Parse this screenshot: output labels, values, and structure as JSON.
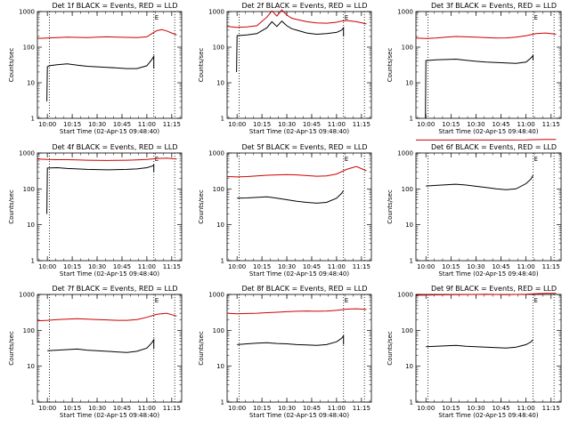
{
  "chart_data": [
    {
      "type": "line",
      "title": "Det 1f BLACK = Events, RED = LLD",
      "xlabel": "Start Time (02-Apr-15 09:48:40)",
      "ylabel": "Counts/sec",
      "yscale": "log",
      "ylim": [
        1,
        1000
      ],
      "xlim": [
        9.9,
        11.35
      ],
      "x_ticks": [
        "10:00",
        "10:15",
        "10:30",
        "10:45",
        "11:00",
        "11:15"
      ],
      "y_ticks": [
        "1",
        "10",
        "100",
        "1000"
      ],
      "grid": false,
      "legend": "none",
      "markers": [
        {
          "x": 10.02,
          "label": ""
        },
        {
          "x": 11.07,
          "label": "E"
        },
        {
          "x": 11.28,
          "label": ""
        }
      ],
      "series": [
        {
          "color": "#000000",
          "x": [
            9.995,
            10.0,
            10.02,
            10.1,
            10.2,
            10.3,
            10.4,
            10.5,
            10.6,
            10.7,
            10.8,
            10.9,
            11.0,
            11.05,
            11.07,
            11.07
          ],
          "y": [
            3,
            28,
            30,
            32,
            34,
            31,
            29,
            28,
            27,
            26,
            25,
            25,
            30,
            45,
            55,
            25
          ]
        },
        {
          "color": "#cc0000",
          "x": [
            9.9,
            10.0,
            10.1,
            10.2,
            10.3,
            10.4,
            10.5,
            10.6,
            10.7,
            10.8,
            10.9,
            11.0,
            11.05,
            11.1,
            11.15,
            11.2,
            11.25,
            11.3
          ],
          "y": [
            175,
            180,
            185,
            190,
            188,
            185,
            192,
            195,
            190,
            188,
            185,
            195,
            240,
            290,
            310,
            285,
            250,
            220
          ]
        }
      ]
    },
    {
      "type": "line",
      "title": "Det 2f BLACK = Events, RED = LLD",
      "xlabel": "Start Time (02-Apr-15 09:48:40)",
      "ylabel": "Counts/sec",
      "yscale": "log",
      "ylim": [
        1,
        1000
      ],
      "xlim": [
        9.9,
        11.35
      ],
      "x_ticks": [
        "10:00",
        "10:15",
        "10:30",
        "10:45",
        "11:00",
        "11:15"
      ],
      "y_ticks": [
        "1",
        "10",
        "100",
        "1000"
      ],
      "grid": false,
      "legend": "none",
      "markers": [
        {
          "x": 10.02,
          "label": ""
        },
        {
          "x": 11.07,
          "label": "E"
        },
        {
          "x": 11.28,
          "label": ""
        }
      ],
      "series": [
        {
          "color": "#000000",
          "x": [
            9.995,
            10.0,
            10.1,
            10.2,
            10.3,
            10.35,
            10.4,
            10.45,
            10.5,
            10.55,
            10.6,
            10.7,
            10.8,
            10.9,
            11.0,
            11.05,
            11.07,
            11.07
          ],
          "y": [
            20,
            210,
            220,
            240,
            350,
            520,
            380,
            540,
            400,
            330,
            300,
            250,
            230,
            240,
            260,
            300,
            350,
            200
          ]
        },
        {
          "color": "#cc0000",
          "x": [
            9.9,
            10.0,
            10.1,
            10.2,
            10.3,
            10.35,
            10.4,
            10.45,
            10.5,
            10.55,
            10.6,
            10.7,
            10.8,
            10.9,
            11.0,
            11.05,
            11.1,
            11.2,
            11.3
          ],
          "y": [
            380,
            360,
            370,
            400,
            700,
            1050,
            750,
            1100,
            800,
            650,
            600,
            520,
            480,
            470,
            500,
            540,
            560,
            520,
            450
          ]
        }
      ]
    },
    {
      "type": "line",
      "title": "Det 3f BLACK = Events, RED = LLD",
      "xlabel": "Start Time (02-Apr-15 09:48:40)",
      "ylabel": "Counts/sec",
      "yscale": "log",
      "ylim": [
        1,
        1000
      ],
      "xlim": [
        9.9,
        11.35
      ],
      "x_ticks": [
        "10:00",
        "10:15",
        "10:30",
        "10:45",
        "11:00",
        "11:15"
      ],
      "y_ticks": [
        "1",
        "10",
        "100",
        "1000"
      ],
      "grid": false,
      "legend": "none",
      "markers": [
        {
          "x": 10.02,
          "label": ""
        },
        {
          "x": 11.07,
          "label": "E"
        },
        {
          "x": 11.28,
          "label": ""
        }
      ],
      "series": [
        {
          "color": "#000000",
          "x": [
            9.995,
            10.0,
            10.1,
            10.2,
            10.3,
            10.4,
            10.5,
            10.6,
            10.7,
            10.8,
            10.9,
            11.0,
            11.05,
            11.07,
            11.07
          ],
          "y": [
            1,
            42,
            44,
            45,
            46,
            43,
            40,
            38,
            37,
            36,
            35,
            38,
            50,
            58,
            42
          ]
        },
        {
          "color": "#cc0000",
          "x": [
            9.9,
            10.0,
            10.1,
            10.2,
            10.3,
            10.4,
            10.5,
            10.6,
            10.7,
            10.8,
            10.9,
            11.0,
            11.1,
            11.2,
            11.3
          ],
          "y": [
            180,
            175,
            180,
            190,
            200,
            195,
            190,
            185,
            180,
            182,
            190,
            210,
            240,
            250,
            230
          ]
        }
      ]
    },
    {
      "type": "line",
      "title": "Det 4f BLACK = Events, RED = LLD",
      "xlabel": "Start Time (02-Apr-15 09:48:40)",
      "ylabel": "Counts/sec",
      "yscale": "log",
      "ylim": [
        1,
        1000
      ],
      "xlim": [
        9.9,
        11.35
      ],
      "x_ticks": [
        "10:00",
        "10:15",
        "10:30",
        "10:45",
        "11:00",
        "11:15"
      ],
      "y_ticks": [
        "1",
        "10",
        "100",
        "1000"
      ],
      "grid": false,
      "legend": "none",
      "markers": [
        {
          "x": 10.02,
          "label": ""
        },
        {
          "x": 11.07,
          "label": "E"
        },
        {
          "x": 11.28,
          "label": ""
        }
      ],
      "series": [
        {
          "color": "#000000",
          "x": [
            9.995,
            10.0,
            10.1,
            10.2,
            10.3,
            10.4,
            10.5,
            10.6,
            10.7,
            10.8,
            10.9,
            11.0,
            11.05,
            11.07,
            11.07
          ],
          "y": [
            20,
            380,
            390,
            370,
            360,
            350,
            345,
            340,
            345,
            350,
            360,
            390,
            430,
            460,
            300
          ]
        },
        {
          "color": "#cc0000",
          "x": [
            9.9,
            10.0,
            10.1,
            10.2,
            10.3,
            10.4,
            10.5,
            10.6,
            10.7,
            10.8,
            10.9,
            11.0,
            11.1,
            11.2,
            11.3
          ],
          "y": [
            680,
            660,
            650,
            650,
            640,
            630,
            625,
            620,
            625,
            630,
            640,
            660,
            700,
            720,
            680
          ]
        }
      ]
    },
    {
      "type": "line",
      "title": "Det 5f BLACK = Events, RED = LLD",
      "xlabel": "Start Time (02-Apr-15 09:48:40)",
      "ylabel": "Counts/sec",
      "yscale": "log",
      "ylim": [
        1,
        1000
      ],
      "xlim": [
        9.9,
        11.35
      ],
      "x_ticks": [
        "10:00",
        "10:15",
        "10:30",
        "10:45",
        "11:00",
        "11:15"
      ],
      "y_ticks": [
        "1",
        "10",
        "100",
        "1000"
      ],
      "grid": false,
      "legend": "none",
      "markers": [
        {
          "x": 10.02,
          "label": ""
        },
        {
          "x": 11.07,
          "label": "E"
        },
        {
          "x": 11.28,
          "label": ""
        }
      ],
      "series": [
        {
          "color": "#000000",
          "x": [
            10.0,
            10.1,
            10.2,
            10.3,
            10.4,
            10.5,
            10.6,
            10.7,
            10.8,
            10.9,
            11.0,
            11.05,
            11.07
          ],
          "y": [
            55,
            56,
            58,
            60,
            55,
            50,
            45,
            42,
            40,
            42,
            55,
            75,
            90
          ]
        },
        {
          "color": "#cc0000",
          "x": [
            9.9,
            10.0,
            10.1,
            10.2,
            10.3,
            10.4,
            10.5,
            10.6,
            10.7,
            10.8,
            10.9,
            11.0,
            11.1,
            11.2,
            11.3
          ],
          "y": [
            220,
            215,
            220,
            230,
            240,
            245,
            250,
            245,
            235,
            225,
            230,
            260,
            350,
            420,
            320
          ]
        }
      ]
    },
    {
      "type": "line",
      "title": "Det 6f BLACK = Events, RED = LLD",
      "xlabel": "Start Time (02-Apr-15 09:48:40)",
      "ylabel": "Counts/sec",
      "yscale": "log",
      "ylim": [
        1,
        1000
      ],
      "xlim": [
        9.9,
        11.35
      ],
      "x_ticks": [
        "10:00",
        "10:15",
        "10:30",
        "10:45",
        "11:00",
        "11:15"
      ],
      "y_ticks": [
        "1",
        "10",
        "100",
        "1000"
      ],
      "grid": false,
      "legend": "none",
      "markers": [
        {
          "x": 10.02,
          "label": ""
        },
        {
          "x": 11.07,
          "label": "E"
        },
        {
          "x": 11.28,
          "label": ""
        }
      ],
      "series": [
        {
          "color": "#000000",
          "x": [
            10.0,
            10.1,
            10.2,
            10.3,
            10.4,
            10.5,
            10.6,
            10.7,
            10.8,
            10.9,
            11.0,
            11.05,
            11.07
          ],
          "y": [
            120,
            125,
            130,
            135,
            128,
            118,
            110,
            100,
            95,
            100,
            140,
            190,
            240
          ]
        },
        {
          "color": "#cc0000",
          "x": [
            9.9,
            10.0,
            10.2,
            10.4,
            10.6,
            10.8,
            11.0,
            11.1,
            11.2,
            11.3
          ],
          "y": [
            2300,
            2300,
            2300,
            2310,
            2300,
            2300,
            2320,
            2350,
            2380,
            2400
          ]
        }
      ]
    },
    {
      "type": "line",
      "title": "Det 7f BLACK = Events, RED = LLD",
      "xlabel": "Start Time (02-Apr-15 09:48:40)",
      "ylabel": "Counts/sec",
      "yscale": "log",
      "ylim": [
        1,
        1000
      ],
      "xlim": [
        9.9,
        11.35
      ],
      "x_ticks": [
        "10:00",
        "10:15",
        "10:30",
        "10:45",
        "11:00",
        "11:15"
      ],
      "y_ticks": [
        "1",
        "10",
        "100",
        "1000"
      ],
      "grid": false,
      "legend": "none",
      "markers": [
        {
          "x": 10.02,
          "label": ""
        },
        {
          "x": 11.07,
          "label": "E"
        },
        {
          "x": 11.28,
          "label": ""
        }
      ],
      "series": [
        {
          "color": "#000000",
          "x": [
            10.0,
            10.1,
            10.2,
            10.3,
            10.4,
            10.5,
            10.6,
            10.7,
            10.8,
            10.9,
            11.0,
            11.05,
            11.07,
            11.07
          ],
          "y": [
            27,
            28,
            29,
            30,
            28,
            27,
            26,
            25,
            24,
            26,
            32,
            45,
            55,
            30
          ]
        },
        {
          "color": "#cc0000",
          "x": [
            9.9,
            10.0,
            10.1,
            10.2,
            10.3,
            10.4,
            10.5,
            10.6,
            10.7,
            10.8,
            10.9,
            11.0,
            11.1,
            11.2,
            11.3
          ],
          "y": [
            185,
            190,
            200,
            205,
            210,
            205,
            200,
            195,
            190,
            190,
            200,
            230,
            280,
            300,
            250
          ]
        }
      ]
    },
    {
      "type": "line",
      "title": "Det 8f BLACK = Events, RED = LLD",
      "xlabel": "Start Time (02-Apr-15 09:48:40)",
      "ylabel": "Counts/sec",
      "yscale": "log",
      "ylim": [
        1,
        1000
      ],
      "xlim": [
        9.9,
        11.35
      ],
      "x_ticks": [
        "10:00",
        "10:15",
        "10:30",
        "10:45",
        "11:00",
        "11:15"
      ],
      "y_ticks": [
        "1",
        "10",
        "100",
        "1000"
      ],
      "grid": false,
      "legend": "none",
      "markers": [
        {
          "x": 10.02,
          "label": ""
        },
        {
          "x": 11.07,
          "label": "E"
        },
        {
          "x": 11.28,
          "label": ""
        }
      ],
      "series": [
        {
          "color": "#000000",
          "x": [
            10.0,
            10.1,
            10.2,
            10.3,
            10.4,
            10.5,
            10.6,
            10.7,
            10.8,
            10.9,
            11.0,
            11.05,
            11.07,
            11.07
          ],
          "y": [
            40,
            42,
            44,
            45,
            43,
            42,
            40,
            39,
            38,
            40,
            48,
            60,
            70,
            40
          ]
        },
        {
          "color": "#cc0000",
          "x": [
            9.9,
            10.0,
            10.1,
            10.2,
            10.3,
            10.4,
            10.5,
            10.6,
            10.7,
            10.8,
            10.9,
            11.0,
            11.1,
            11.2,
            11.3
          ],
          "y": [
            300,
            290,
            295,
            300,
            310,
            320,
            330,
            340,
            345,
            340,
            345,
            360,
            390,
            400,
            380
          ]
        }
      ]
    },
    {
      "type": "line",
      "title": "Det 9f BLACK = Events, RED = LLD",
      "xlabel": "Start Time (02-Apr-15 09:48:40)",
      "ylabel": "Counts/sec",
      "yscale": "log",
      "ylim": [
        1,
        1000
      ],
      "xlim": [
        9.9,
        11.35
      ],
      "x_ticks": [
        "10:00",
        "10:15",
        "10:30",
        "10:45",
        "11:00",
        "11:15"
      ],
      "y_ticks": [
        "1",
        "10",
        "100",
        "1000"
      ],
      "grid": false,
      "legend": "none",
      "markers": [
        {
          "x": 10.02,
          "label": ""
        },
        {
          "x": 11.07,
          "label": "E"
        },
        {
          "x": 11.28,
          "label": ""
        }
      ],
      "series": [
        {
          "color": "#000000",
          "x": [
            10.0,
            10.1,
            10.2,
            10.3,
            10.4,
            10.5,
            10.6,
            10.7,
            10.8,
            10.9,
            11.0,
            11.05,
            11.07
          ],
          "y": [
            35,
            36,
            37,
            38,
            36,
            35,
            34,
            33,
            32,
            34,
            40,
            48,
            55
          ]
        },
        {
          "color": "#cc0000",
          "x": [
            9.9,
            10.0,
            10.1,
            10.2,
            10.3,
            10.4,
            10.5,
            10.6,
            10.7,
            10.8,
            10.9,
            11.0,
            11.1,
            11.2,
            11.3
          ],
          "y": [
            950,
            960,
            970,
            980,
            990,
            995,
            1000,
            1010,
            1000,
            990,
            1000,
            1020,
            1050,
            1080,
            1070
          ]
        }
      ]
    }
  ]
}
